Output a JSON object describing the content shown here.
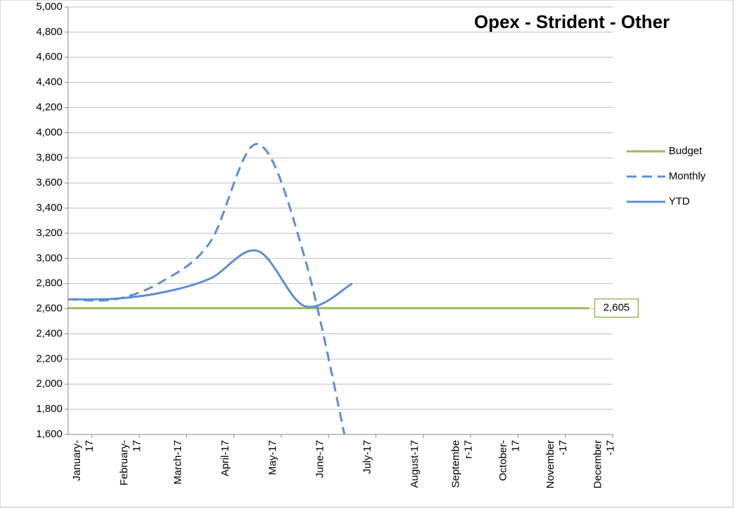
{
  "chart_data": {
    "type": "line",
    "title": "Opex - Strident - Other",
    "categories": [
      "January-\n17",
      "February-\n17",
      "March-17",
      "April-17",
      "May-17",
      "June-17",
      "July-17",
      "August-17",
      "Septembe\nr-17",
      "October-\n17",
      "November\n-17",
      "December\n-17"
    ],
    "series": [
      {
        "name": "Budget",
        "color": "#9bbb59",
        "dash": false,
        "values": [
          2605,
          2605,
          2605,
          2605,
          2605,
          2605,
          2605,
          2605,
          2605,
          2605,
          2605,
          2605
        ],
        "value_labels": [
          null,
          null,
          null,
          null,
          null,
          null,
          null,
          null,
          null,
          null,
          null,
          "2,605"
        ]
      },
      {
        "name": "Monthly",
        "color": "#5b8fd6",
        "dash": true,
        "values": [
          2675,
          2675,
          2820,
          3130,
          3910,
          3000,
          1300,
          null,
          null,
          null,
          null,
          null
        ]
      },
      {
        "name": "YTD",
        "color": "#5b8fd6",
        "dash": false,
        "values": [
          2675,
          2680,
          2730,
          2840,
          3060,
          2620,
          2800,
          null,
          null,
          null,
          null,
          null
        ]
      }
    ],
    "ylim": [
      1600,
      5000
    ],
    "yticks": [
      {
        "value": 1600,
        "label": "1,600"
      },
      {
        "value": 1800,
        "label": "1,800"
      },
      {
        "value": 2000,
        "label": "2,000"
      },
      {
        "value": 2200,
        "label": "2,200"
      },
      {
        "value": 2400,
        "label": "2,400"
      },
      {
        "value": 2600,
        "label": "2,600"
      },
      {
        "value": 2800,
        "label": "2,800"
      },
      {
        "value": 3000,
        "label": "3,000"
      },
      {
        "value": 3200,
        "label": "3,200"
      },
      {
        "value": 3400,
        "label": "3,400"
      },
      {
        "value": 3600,
        "label": "3,600"
      },
      {
        "value": 3800,
        "label": "3,800"
      },
      {
        "value": 4000,
        "label": "4,000"
      },
      {
        "value": 4200,
        "label": "4,200"
      },
      {
        "value": 4400,
        "label": "4,400"
      },
      {
        "value": 4600,
        "label": "4,600"
      },
      {
        "value": 4800,
        "label": "4,800"
      },
      {
        "value": 5000,
        "label": "5,000"
      }
    ],
    "grid": true,
    "legend": "right",
    "smooth": true
  }
}
